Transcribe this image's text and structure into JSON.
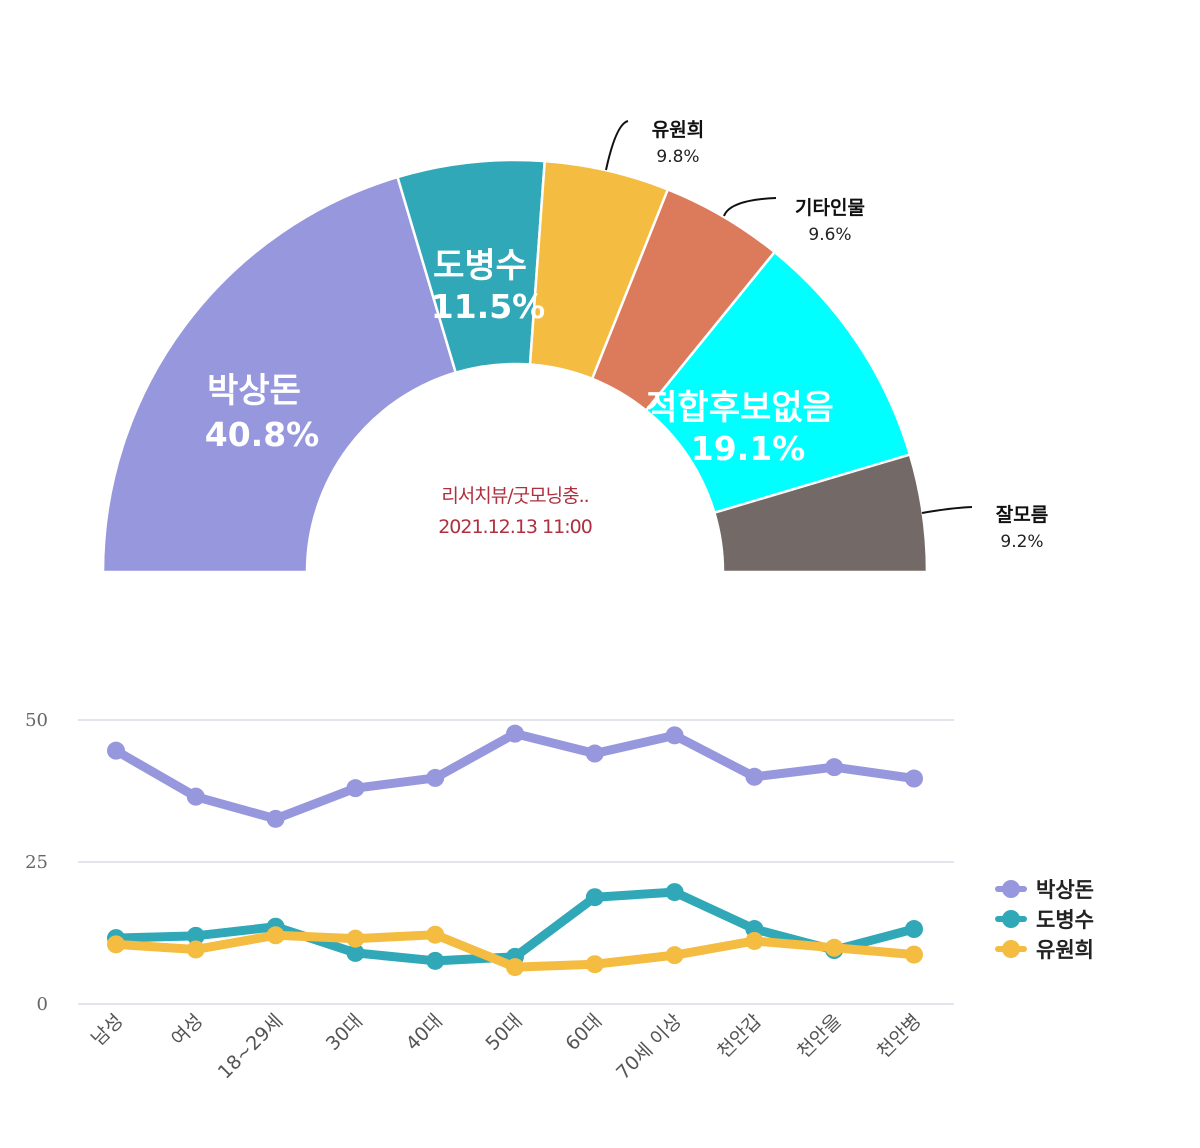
{
  "chart_data": [
    {
      "type": "pie",
      "variant": "semi-donut",
      "center_text": [
        "리서치뷰/굿모닝충..",
        "2021.12.13 11:00"
      ],
      "slices": [
        {
          "name": "박상돈",
          "value": 40.8,
          "label": "40.8%",
          "color": "#9797de",
          "label_mode": "inside"
        },
        {
          "name": "도병수",
          "value": 11.5,
          "label": "11.5%",
          "color": "#31a8b8",
          "label_mode": "inside"
        },
        {
          "name": "유원희",
          "value": 9.8,
          "label": "9.8%",
          "color": "#f4bc40",
          "label_mode": "outside"
        },
        {
          "name": "기타인물",
          "value": 9.6,
          "label": "9.6%",
          "color": "#dc7a5c",
          "label_mode": "outside"
        },
        {
          "name": "적합후보없음",
          "value": 19.1,
          "label": "19.1%",
          "color": "#00ffff",
          "label_mode": "inside"
        },
        {
          "name": "잘모름",
          "value": 9.2,
          "label": "9.2%",
          "color": "#736a67",
          "label_mode": "outside"
        }
      ]
    },
    {
      "type": "line",
      "categories": [
        "남성",
        "여성",
        "18~29세",
        "30대",
        "40대",
        "50대",
        "60대",
        "70세 이상",
        "천안갑",
        "천안을",
        "천안병"
      ],
      "ylim": [
        0,
        50
      ],
      "yticks": [
        "0",
        "25",
        "50"
      ],
      "grid": true,
      "legend_position": "right",
      "series": [
        {
          "name": "박상돈",
          "color": "#9797de",
          "values": [
            44.6,
            36.5,
            32.6,
            38.0,
            39.8,
            47.6,
            44.1,
            47.3,
            40.0,
            41.7,
            39.7
          ]
        },
        {
          "name": "도병수",
          "color": "#31a8b8",
          "values": [
            11.6,
            12.0,
            13.6,
            9.0,
            7.6,
            8.3,
            18.8,
            19.7,
            13.2,
            9.5,
            13.2
          ]
        },
        {
          "name": "유원희",
          "color": "#f4bc40",
          "values": [
            10.5,
            9.6,
            12.1,
            11.5,
            12.2,
            6.5,
            7.0,
            8.6,
            11.1,
            9.9,
            8.7
          ]
        }
      ]
    }
  ]
}
